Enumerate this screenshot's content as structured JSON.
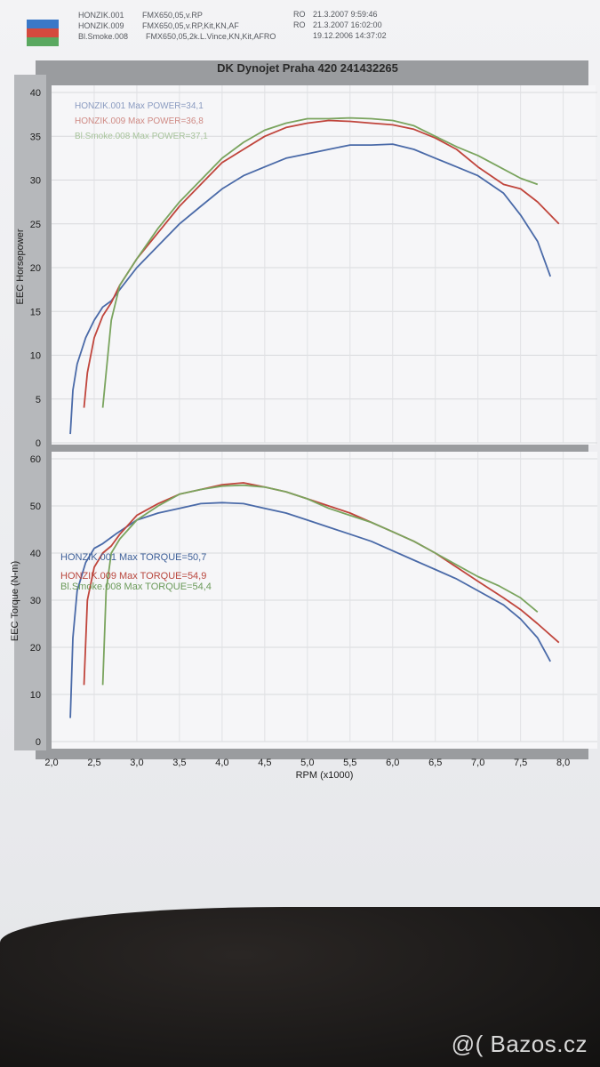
{
  "header": {
    "runs": [
      {
        "name": "HONZIK.001",
        "config": "FMX650,05,v.RP",
        "status": "RO",
        "timestamp": "21.3.2007 9:59:46",
        "color": "#4a6aa8"
      },
      {
        "name": "HONZIK.009",
        "config": "FMX650,05,v.RP,Kit,KN,AF",
        "status": "RO",
        "timestamp": "21.3.2007 16:02:00",
        "color": "#c0453c"
      },
      {
        "name": "Bl.Smoke.008",
        "config": "FMX650,05,2k.L.Vince,KN,Kit,AFRO",
        "status": "",
        "timestamp": "19.12.2006 14:37:02",
        "color": "#6a9a58"
      }
    ]
  },
  "title": "DK   Dynojet  Praha 420 241432265",
  "watermark": "@( Bazos.cz",
  "chart_data": [
    {
      "type": "line",
      "ylabel": "EEC Horsepower",
      "ylim": [
        0,
        40
      ],
      "yticks": [
        0,
        5,
        10,
        15,
        20,
        25,
        30,
        35,
        40
      ],
      "grid": true,
      "legend": [
        "HONZIK.001  Max POWER=34,1",
        "HONZIK.009  Max POWER=36,8",
        "Bl.Smoke.008  Max POWER=37,1"
      ],
      "series": [
        {
          "name": "HONZIK.001",
          "color": "#4a6aa8",
          "x": [
            2.22,
            2.25,
            2.3,
            2.4,
            2.5,
            2.6,
            2.7,
            2.8,
            3.0,
            3.25,
            3.5,
            3.75,
            4.0,
            4.25,
            4.5,
            4.75,
            5.0,
            5.25,
            5.5,
            5.75,
            6.0,
            6.25,
            6.5,
            6.75,
            7.0,
            7.3,
            7.5,
            7.7,
            7.85
          ],
          "y": [
            1,
            6,
            9,
            12,
            14,
            15.5,
            16.2,
            17.5,
            20,
            22.5,
            25,
            27,
            29,
            30.5,
            31.5,
            32.5,
            33,
            33.5,
            34,
            34,
            34.1,
            33.5,
            32.5,
            31.5,
            30.5,
            28.5,
            26,
            23,
            19
          ]
        },
        {
          "name": "HONZIK.009",
          "color": "#c0453c",
          "x": [
            2.38,
            2.42,
            2.5,
            2.6,
            2.7,
            2.8,
            3.0,
            3.25,
            3.5,
            3.75,
            4.0,
            4.25,
            4.5,
            4.75,
            5.0,
            5.25,
            5.5,
            5.75,
            6.0,
            6.25,
            6.5,
            6.75,
            7.0,
            7.3,
            7.5,
            7.7,
            7.95
          ],
          "y": [
            4,
            8,
            12,
            14.5,
            16,
            18,
            21,
            24,
            27,
            29.5,
            32,
            33.5,
            35,
            36,
            36.5,
            36.8,
            36.7,
            36.5,
            36.3,
            35.8,
            34.8,
            33.5,
            31.5,
            29.5,
            29,
            27.5,
            25
          ]
        },
        {
          "name": "Bl.Smoke.008",
          "color": "#7aa45e",
          "x": [
            2.6,
            2.64,
            2.7,
            2.8,
            3.0,
            3.25,
            3.5,
            3.75,
            4.0,
            4.25,
            4.5,
            4.75,
            5.0,
            5.25,
            5.5,
            5.75,
            6.0,
            6.25,
            6.5,
            6.75,
            7.0,
            7.25,
            7.5,
            7.7
          ],
          "y": [
            4,
            8,
            14,
            18,
            21,
            24.5,
            27.5,
            30,
            32.5,
            34.3,
            35.7,
            36.5,
            37,
            37,
            37.1,
            37,
            36.8,
            36.2,
            35,
            33.8,
            32.8,
            31.5,
            30.2,
            29.5
          ]
        }
      ]
    },
    {
      "type": "line",
      "ylabel": "EEC Torque (N-m)",
      "xlabel": "RPM (x1000)",
      "ylim": [
        0,
        60
      ],
      "xlim": [
        2.0,
        8.4
      ],
      "yticks": [
        0,
        10,
        20,
        30,
        40,
        50,
        60
      ],
      "xticks": [
        "2,0",
        "2,5",
        "3,0",
        "3,5",
        "4,0",
        "4,5",
        "5,0",
        "5,5",
        "6,0",
        "6,5",
        "7,0",
        "7,5",
        "8,0",
        "8"
      ],
      "grid": true,
      "legend": [
        "HONZIK.001  Max TORQUE=50,7",
        "HONZIK.009  Max TORQUE=54,9",
        "Bl.Smoke.008  Max TORQUE=54,4"
      ],
      "series": [
        {
          "name": "HONZIK.001",
          "color": "#4a6aa8",
          "x": [
            2.22,
            2.25,
            2.3,
            2.4,
            2.5,
            2.6,
            2.75,
            3.0,
            3.25,
            3.5,
            3.75,
            4.0,
            4.25,
            4.5,
            4.75,
            5.0,
            5.25,
            5.5,
            5.75,
            6.0,
            6.25,
            6.5,
            6.75,
            7.0,
            7.3,
            7.5,
            7.7,
            7.85
          ],
          "y": [
            5,
            22,
            32,
            38,
            41,
            42,
            44,
            47,
            48.5,
            49.5,
            50.5,
            50.7,
            50.5,
            49.5,
            48.5,
            47,
            45.5,
            44,
            42.5,
            40.5,
            38.5,
            36.5,
            34.5,
            32,
            29,
            26,
            22,
            17
          ]
        },
        {
          "name": "HONZIK.009",
          "color": "#c0453c",
          "x": [
            2.38,
            2.42,
            2.5,
            2.6,
            2.7,
            2.8,
            3.0,
            3.25,
            3.5,
            3.75,
            4.0,
            4.25,
            4.5,
            4.75,
            5.0,
            5.25,
            5.5,
            5.75,
            6.0,
            6.25,
            6.5,
            6.75,
            7.0,
            7.3,
            7.5,
            7.7,
            7.95
          ],
          "y": [
            12,
            30,
            37,
            40,
            41.5,
            44,
            48,
            50.5,
            52.5,
            53.5,
            54.5,
            54.9,
            54,
            53,
            51.5,
            50,
            48.5,
            46.5,
            44.5,
            42.5,
            40,
            37,
            34,
            30.5,
            28,
            25,
            21
          ]
        },
        {
          "name": "Bl.Smoke.008",
          "color": "#7aa45e",
          "x": [
            2.6,
            2.64,
            2.7,
            2.8,
            3.0,
            3.25,
            3.5,
            3.75,
            4.0,
            4.25,
            4.5,
            4.75,
            5.0,
            5.25,
            5.5,
            5.75,
            6.0,
            6.25,
            6.5,
            6.75,
            7.0,
            7.25,
            7.5,
            7.7
          ],
          "y": [
            12,
            32,
            40,
            43,
            47,
            50,
            52.5,
            53.5,
            54.2,
            54.4,
            54,
            53,
            51.5,
            49.5,
            48,
            46.5,
            44.5,
            42.5,
            40,
            37.5,
            35,
            33,
            30.5,
            27.5
          ]
        }
      ]
    }
  ]
}
